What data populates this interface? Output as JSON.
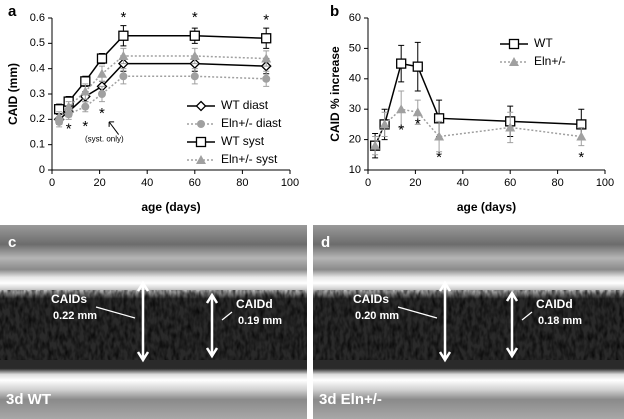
{
  "chart_data": [
    {
      "type": "line",
      "panel": "a",
      "ylabel": "CAID (mm)",
      "xlabel": "age (days)",
      "xlim": [
        0,
        100
      ],
      "xticks": [
        0,
        20,
        40,
        60,
        80,
        100
      ],
      "ylim": [
        0,
        0.6
      ],
      "yticks": [
        0,
        0.1,
        0.2,
        0.3,
        0.4,
        0.5,
        0.6
      ],
      "x": [
        3,
        7,
        14,
        21,
        30,
        60,
        90
      ],
      "series": [
        {
          "name": "WT diast",
          "color": "#000000",
          "marker": "diamond",
          "dashed": false,
          "values": [
            0.2,
            0.23,
            0.29,
            0.33,
            0.42,
            0.42,
            0.41
          ],
          "errors": [
            0.02,
            0.02,
            0.02,
            0.02,
            0.03,
            0.03,
            0.03
          ]
        },
        {
          "name": "Eln+/- diast",
          "color": "#a0a0a0",
          "marker": "circle",
          "dashed": true,
          "values": [
            0.19,
            0.22,
            0.25,
            0.3,
            0.37,
            0.37,
            0.36
          ],
          "errors": [
            0.02,
            0.02,
            0.02,
            0.03,
            0.03,
            0.03,
            0.03
          ]
        },
        {
          "name": "WT syst",
          "color": "#000000",
          "marker": "square",
          "dashed": false,
          "values": [
            0.24,
            0.27,
            0.35,
            0.44,
            0.53,
            0.53,
            0.52
          ],
          "errors": [
            0.02,
            0.02,
            0.02,
            0.02,
            0.04,
            0.03,
            0.04
          ]
        },
        {
          "name": "Eln+/- syst",
          "color": "#a0a0a0",
          "marker": "triangle",
          "dashed": true,
          "values": [
            0.21,
            0.25,
            0.31,
            0.38,
            0.45,
            0.45,
            0.44
          ],
          "errors": [
            0.02,
            0.02,
            0.03,
            0.03,
            0.03,
            0.03,
            0.03
          ]
        }
      ],
      "annotations": [
        "*",
        "*",
        "*",
        "*",
        "*",
        "*",
        "(syst. only)"
      ]
    },
    {
      "type": "line",
      "panel": "b",
      "ylabel": "CAID  % increase",
      "xlabel": "age (days)",
      "xlim": [
        0,
        100
      ],
      "xticks": [
        0,
        20,
        40,
        60,
        80,
        100
      ],
      "ylim": [
        10,
        60
      ],
      "yticks": [
        10,
        20,
        30,
        40,
        50,
        60
      ],
      "x": [
        3,
        7,
        14,
        21,
        30,
        60,
        90
      ],
      "series": [
        {
          "name": "WT",
          "color": "#000000",
          "marker": "square",
          "dashed": false,
          "values": [
            18,
            25,
            45,
            44,
            27,
            26,
            25
          ],
          "errors": [
            4,
            5,
            6,
            8,
            6,
            5,
            5
          ]
        },
        {
          "name": "Eln+/-",
          "color": "#a0a0a0",
          "marker": "triangle",
          "dashed": true,
          "values": [
            18,
            25,
            30,
            29,
            21,
            24,
            21
          ],
          "errors": [
            3,
            4,
            6,
            4,
            5,
            5,
            3
          ]
        }
      ],
      "annotations": [
        "*",
        "*",
        "*",
        "*"
      ]
    }
  ],
  "images": [
    {
      "panel": "c",
      "caption": "3d WT",
      "measurements": [
        {
          "name": "CAIDs",
          "value": "0.22 mm"
        },
        {
          "name": "CAIDd",
          "value": "0.19 mm"
        }
      ]
    },
    {
      "panel": "d",
      "caption": "3d Eln+/-",
      "measurements": [
        {
          "name": "CAIDs",
          "value": "0.20 mm"
        },
        {
          "name": "CAIDd",
          "value": "0.18 mm"
        }
      ]
    }
  ]
}
